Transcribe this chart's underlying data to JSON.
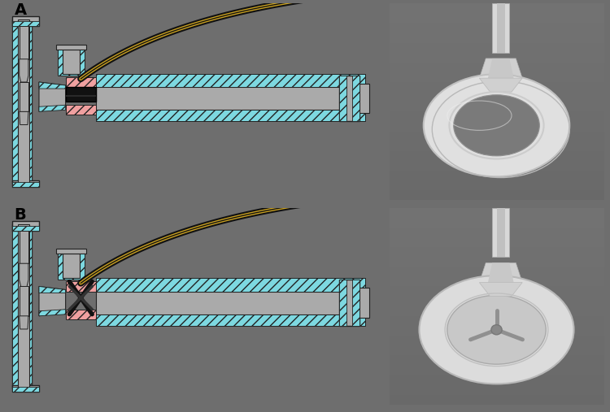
{
  "fig_width": 7.5,
  "fig_height": 5.07,
  "dpi": 100,
  "bg_color": "#6e6e6e",
  "panel_bg": "#ffffff",
  "photo_bg": "#7a7a7a",
  "label_A": "A",
  "label_B": "B",
  "label_fontsize": 14,
  "label_fontweight": "bold",
  "cyan_color": "#7dd8e0",
  "pink_color": "#f0a0a0",
  "gray_body": "#aaaaaa",
  "gray_dark": "#888888",
  "gray_light": "#cccccc",
  "dark_outline": "#222222",
  "black": "#000000",
  "tube_dark": "#111111",
  "tube_gold": "#c8a020"
}
